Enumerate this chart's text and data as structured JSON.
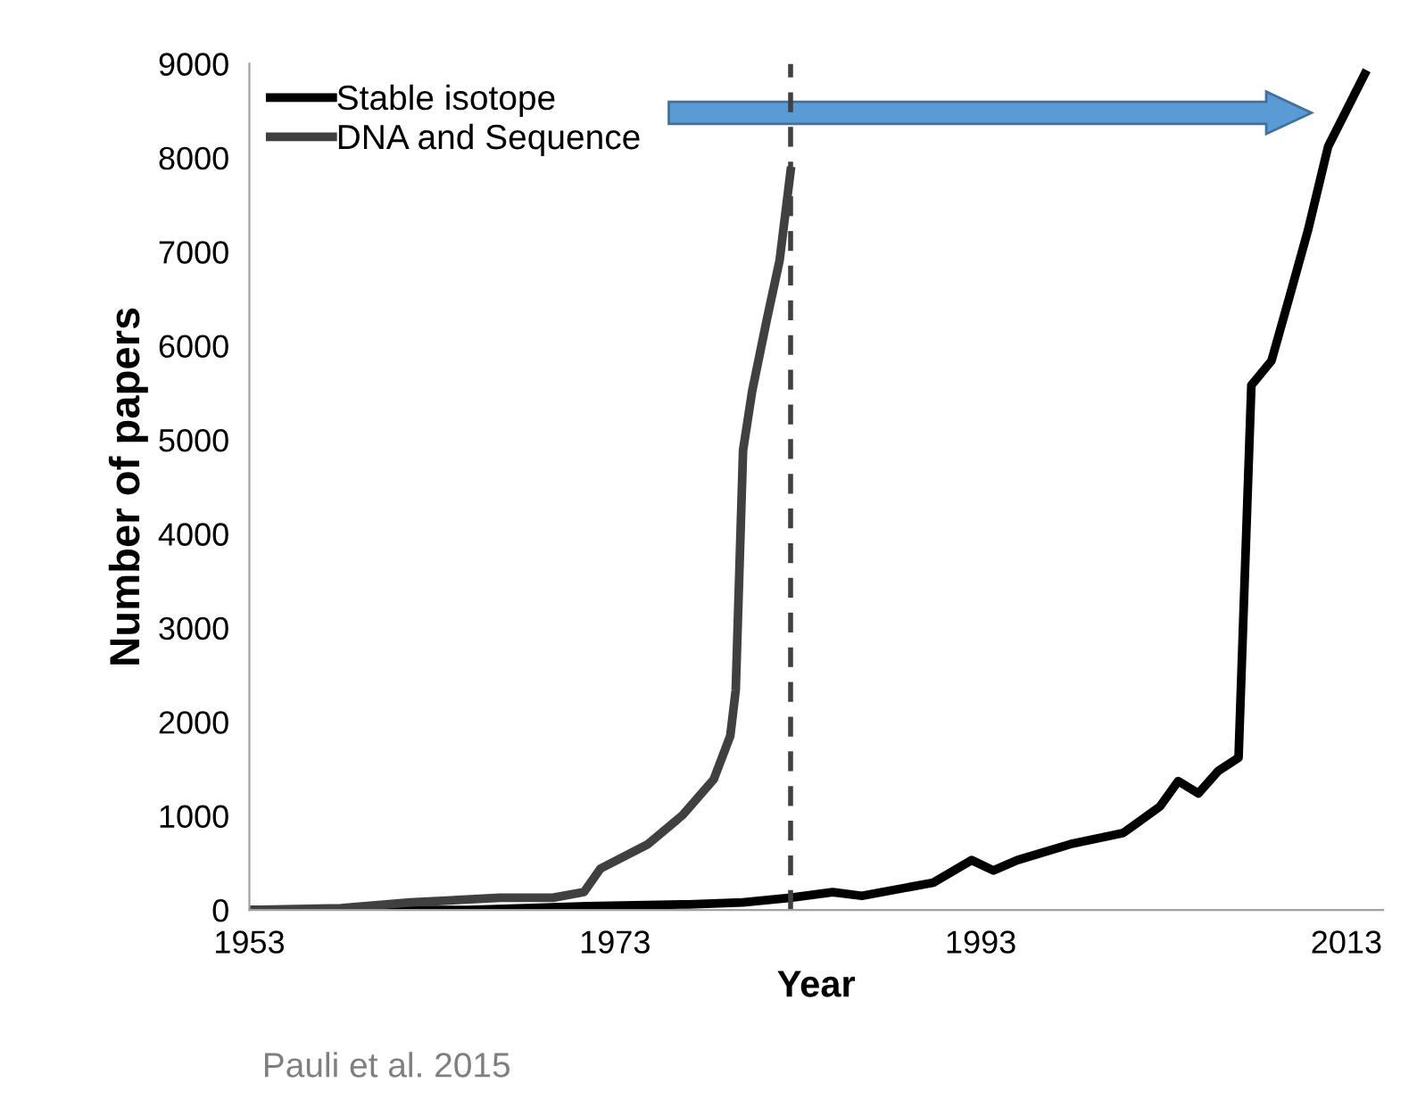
{
  "chart_data": {
    "type": "line",
    "xlabel": "Year",
    "ylabel": "Number of papers",
    "annotations": [
      "Pauli et al. 2015"
    ],
    "series": [
      {
        "name": "Stable isotope",
        "color": "#000000",
        "x": [
          1953,
          1965,
          1971.5,
          1977,
          1980,
          1982.6,
          1984.9,
          1986.5,
          1990.4,
          1992.5,
          1993.7,
          1995,
          1997.9,
          2000.8,
          2002.8,
          2003.8,
          2004.9,
          2006,
          2007.1,
          2007.8,
          2008.9,
          2009.9,
          2010.9,
          2012,
          2014
        ],
        "values": [
          0,
          0,
          40,
          60,
          80,
          130,
          190,
          150,
          290,
          530,
          420,
          530,
          700,
          820,
          1100,
          1370,
          1240,
          1480,
          1620,
          5580,
          5840,
          6530,
          7230,
          8120,
          8890
        ]
      },
      {
        "name": "DNA and Sequence",
        "color": "#404040",
        "x": [
          1953,
          1958,
          1961.8,
          1966.7,
          1969.6,
          1971.3,
          1972.2,
          1974.8,
          1976.7,
          1978.4,
          1979.3,
          1979.6,
          1980,
          1980.5,
          1981.3,
          1982,
          1982.6
        ],
        "values": [
          0,
          20,
          80,
          130,
          130,
          190,
          440,
          700,
          1010,
          1390,
          1850,
          2340,
          4890,
          5520,
          6280,
          6910,
          7860
        ]
      }
    ],
    "xlim": [
      1953,
      2015
    ],
    "xticks": [
      1953,
      1973,
      1993,
      2013
    ],
    "ylim": [
      0,
      9000
    ],
    "yticks": [
      0,
      1000,
      2000,
      3000,
      4000,
      5000,
      6000,
      7000,
      8000,
      9000
    ],
    "ref_lines": [
      {
        "axis": "x",
        "value": 1982.6,
        "color": "#404040",
        "line_style": "dashed"
      }
    ],
    "grid": false,
    "legend": "top left",
    "marker": "none",
    "line_style": "solid"
  }
}
